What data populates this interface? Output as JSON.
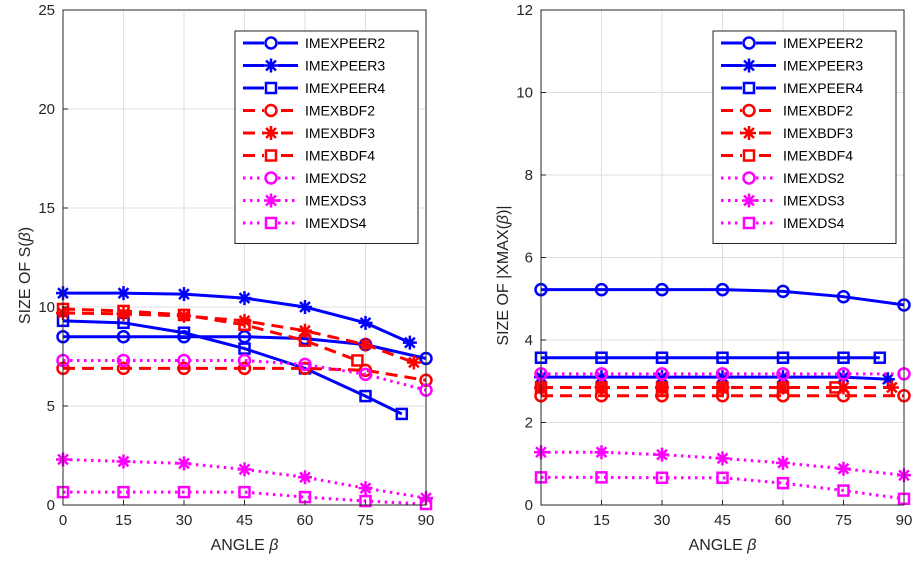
{
  "chart_data": [
    {
      "type": "line",
      "xlabel": "ANGLE",
      "xlabel_symbol": "β",
      "ylabel": "SIZE OF S(",
      "ylabel_symbol": "β",
      "ylabel_suffix": ")",
      "xlim": [
        0,
        90
      ],
      "ylim": [
        0,
        25
      ],
      "xticks": [
        0,
        15,
        30,
        45,
        60,
        75,
        90
      ],
      "yticks": [
        0,
        5,
        10,
        15,
        20,
        25
      ],
      "grid": true,
      "legend_position": "top-right",
      "series": [
        {
          "name": "IMEXPEER2",
          "color": "#0000ff",
          "dash": "solid",
          "marker": "circle",
          "x": [
            0,
            15,
            30,
            45,
            60,
            75,
            90
          ],
          "y": [
            8.5,
            8.5,
            8.5,
            8.5,
            8.4,
            8.1,
            7.4
          ]
        },
        {
          "name": "IMEXPEER3",
          "color": "#0000ff",
          "dash": "solid",
          "marker": "asterisk",
          "x": [
            0,
            15,
            30,
            45,
            60,
            75,
            86
          ],
          "y": [
            10.7,
            10.7,
            10.65,
            10.45,
            10.0,
            9.2,
            8.2
          ]
        },
        {
          "name": "IMEXPEER4",
          "color": "#0000ff",
          "dash": "solid",
          "marker": "square",
          "x": [
            0,
            15,
            30,
            45,
            60,
            75,
            84
          ],
          "y": [
            9.3,
            9.2,
            8.7,
            7.9,
            6.9,
            5.5,
            4.6
          ]
        },
        {
          "name": "IMEXBDF2",
          "color": "#ff0000",
          "dash": "dashed",
          "marker": "circle",
          "x": [
            0,
            15,
            30,
            45,
            60,
            75,
            90
          ],
          "y": [
            6.9,
            6.9,
            6.9,
            6.9,
            6.9,
            6.8,
            6.3
          ]
        },
        {
          "name": "IMEXBDF3",
          "color": "#ff0000",
          "dash": "dashed",
          "marker": "asterisk",
          "x": [
            0,
            15,
            30,
            45,
            60,
            75,
            87
          ],
          "y": [
            9.7,
            9.65,
            9.55,
            9.3,
            8.8,
            8.1,
            7.2
          ]
        },
        {
          "name": "IMEXBDF4",
          "color": "#ff0000",
          "dash": "dashed",
          "marker": "square",
          "x": [
            0,
            15,
            30,
            45,
            60,
            73
          ],
          "y": [
            9.9,
            9.8,
            9.6,
            9.1,
            8.3,
            7.3
          ]
        },
        {
          "name": "IMEXDS2",
          "color": "#ff00ff",
          "dash": "dotted",
          "marker": "circle",
          "x": [
            0,
            15,
            30,
            45,
            60,
            75,
            90
          ],
          "y": [
            7.3,
            7.3,
            7.3,
            7.3,
            7.1,
            6.6,
            5.8
          ]
        },
        {
          "name": "IMEXDS3",
          "color": "#ff00ff",
          "dash": "dotted",
          "marker": "asterisk",
          "x": [
            0,
            15,
            30,
            45,
            60,
            75,
            90
          ],
          "y": [
            2.3,
            2.2,
            2.1,
            1.8,
            1.4,
            0.85,
            0.35
          ]
        },
        {
          "name": "IMEXDS4",
          "color": "#ff00ff",
          "dash": "dotted",
          "marker": "square",
          "x": [
            0,
            15,
            30,
            45,
            60,
            75,
            90
          ],
          "y": [
            0.65,
            0.65,
            0.65,
            0.65,
            0.4,
            0.2,
            0.05
          ]
        }
      ]
    },
    {
      "type": "line",
      "xlabel": "ANGLE",
      "xlabel_symbol": "β",
      "ylabel": "SIZE OF |XMAX(",
      "ylabel_symbol": "β",
      "ylabel_suffix": ")|",
      "xlim": [
        0,
        90
      ],
      "ylim": [
        0,
        12
      ],
      "xticks": [
        0,
        15,
        30,
        45,
        60,
        75,
        90
      ],
      "yticks": [
        0,
        2,
        4,
        6,
        8,
        10,
        12
      ],
      "grid": true,
      "legend_position": "top-right",
      "series": [
        {
          "name": "IMEXPEER2",
          "color": "#0000ff",
          "dash": "solid",
          "marker": "circle",
          "x": [
            0,
            15,
            30,
            45,
            60,
            75,
            90
          ],
          "y": [
            5.22,
            5.22,
            5.22,
            5.22,
            5.18,
            5.05,
            4.85
          ]
        },
        {
          "name": "IMEXPEER3",
          "color": "#0000ff",
          "dash": "solid",
          "marker": "asterisk",
          "x": [
            0,
            15,
            30,
            45,
            60,
            75,
            86
          ],
          "y": [
            3.1,
            3.1,
            3.1,
            3.1,
            3.1,
            3.1,
            3.05
          ]
        },
        {
          "name": "IMEXPEER4",
          "color": "#0000ff",
          "dash": "solid",
          "marker": "square",
          "x": [
            0,
            15,
            30,
            45,
            60,
            75,
            84
          ],
          "y": [
            3.57,
            3.57,
            3.57,
            3.57,
            3.57,
            3.57,
            3.57
          ]
        },
        {
          "name": "IMEXBDF2",
          "color": "#ff0000",
          "dash": "dashed",
          "marker": "circle",
          "x": [
            0,
            15,
            30,
            45,
            60,
            75,
            90
          ],
          "y": [
            2.65,
            2.65,
            2.65,
            2.65,
            2.65,
            2.65,
            2.65
          ]
        },
        {
          "name": "IMEXBDF3",
          "color": "#ff0000",
          "dash": "dashed",
          "marker": "asterisk",
          "x": [
            0,
            15,
            30,
            45,
            60,
            75,
            87
          ],
          "y": [
            2.85,
            2.85,
            2.85,
            2.85,
            2.85,
            2.85,
            2.85
          ]
        },
        {
          "name": "IMEXBDF4",
          "color": "#ff0000",
          "dash": "dashed",
          "marker": "square",
          "x": [
            0,
            15,
            30,
            45,
            60,
            73
          ],
          "y": [
            2.85,
            2.85,
            2.85,
            2.85,
            2.85,
            2.85
          ]
        },
        {
          "name": "IMEXDS2",
          "color": "#ff00ff",
          "dash": "dotted",
          "marker": "circle",
          "x": [
            0,
            15,
            30,
            45,
            60,
            75,
            90
          ],
          "y": [
            3.18,
            3.18,
            3.18,
            3.18,
            3.18,
            3.18,
            3.18
          ]
        },
        {
          "name": "IMEXDS3",
          "color": "#ff00ff",
          "dash": "dotted",
          "marker": "asterisk",
          "x": [
            0,
            15,
            30,
            45,
            60,
            75,
            90
          ],
          "y": [
            1.28,
            1.28,
            1.22,
            1.13,
            1.02,
            0.88,
            0.72
          ]
        },
        {
          "name": "IMEXDS4",
          "color": "#ff00ff",
          "dash": "dotted",
          "marker": "square",
          "x": [
            0,
            15,
            30,
            45,
            60,
            75,
            90
          ],
          "y": [
            0.67,
            0.67,
            0.66,
            0.66,
            0.53,
            0.35,
            0.15
          ]
        }
      ]
    }
  ]
}
